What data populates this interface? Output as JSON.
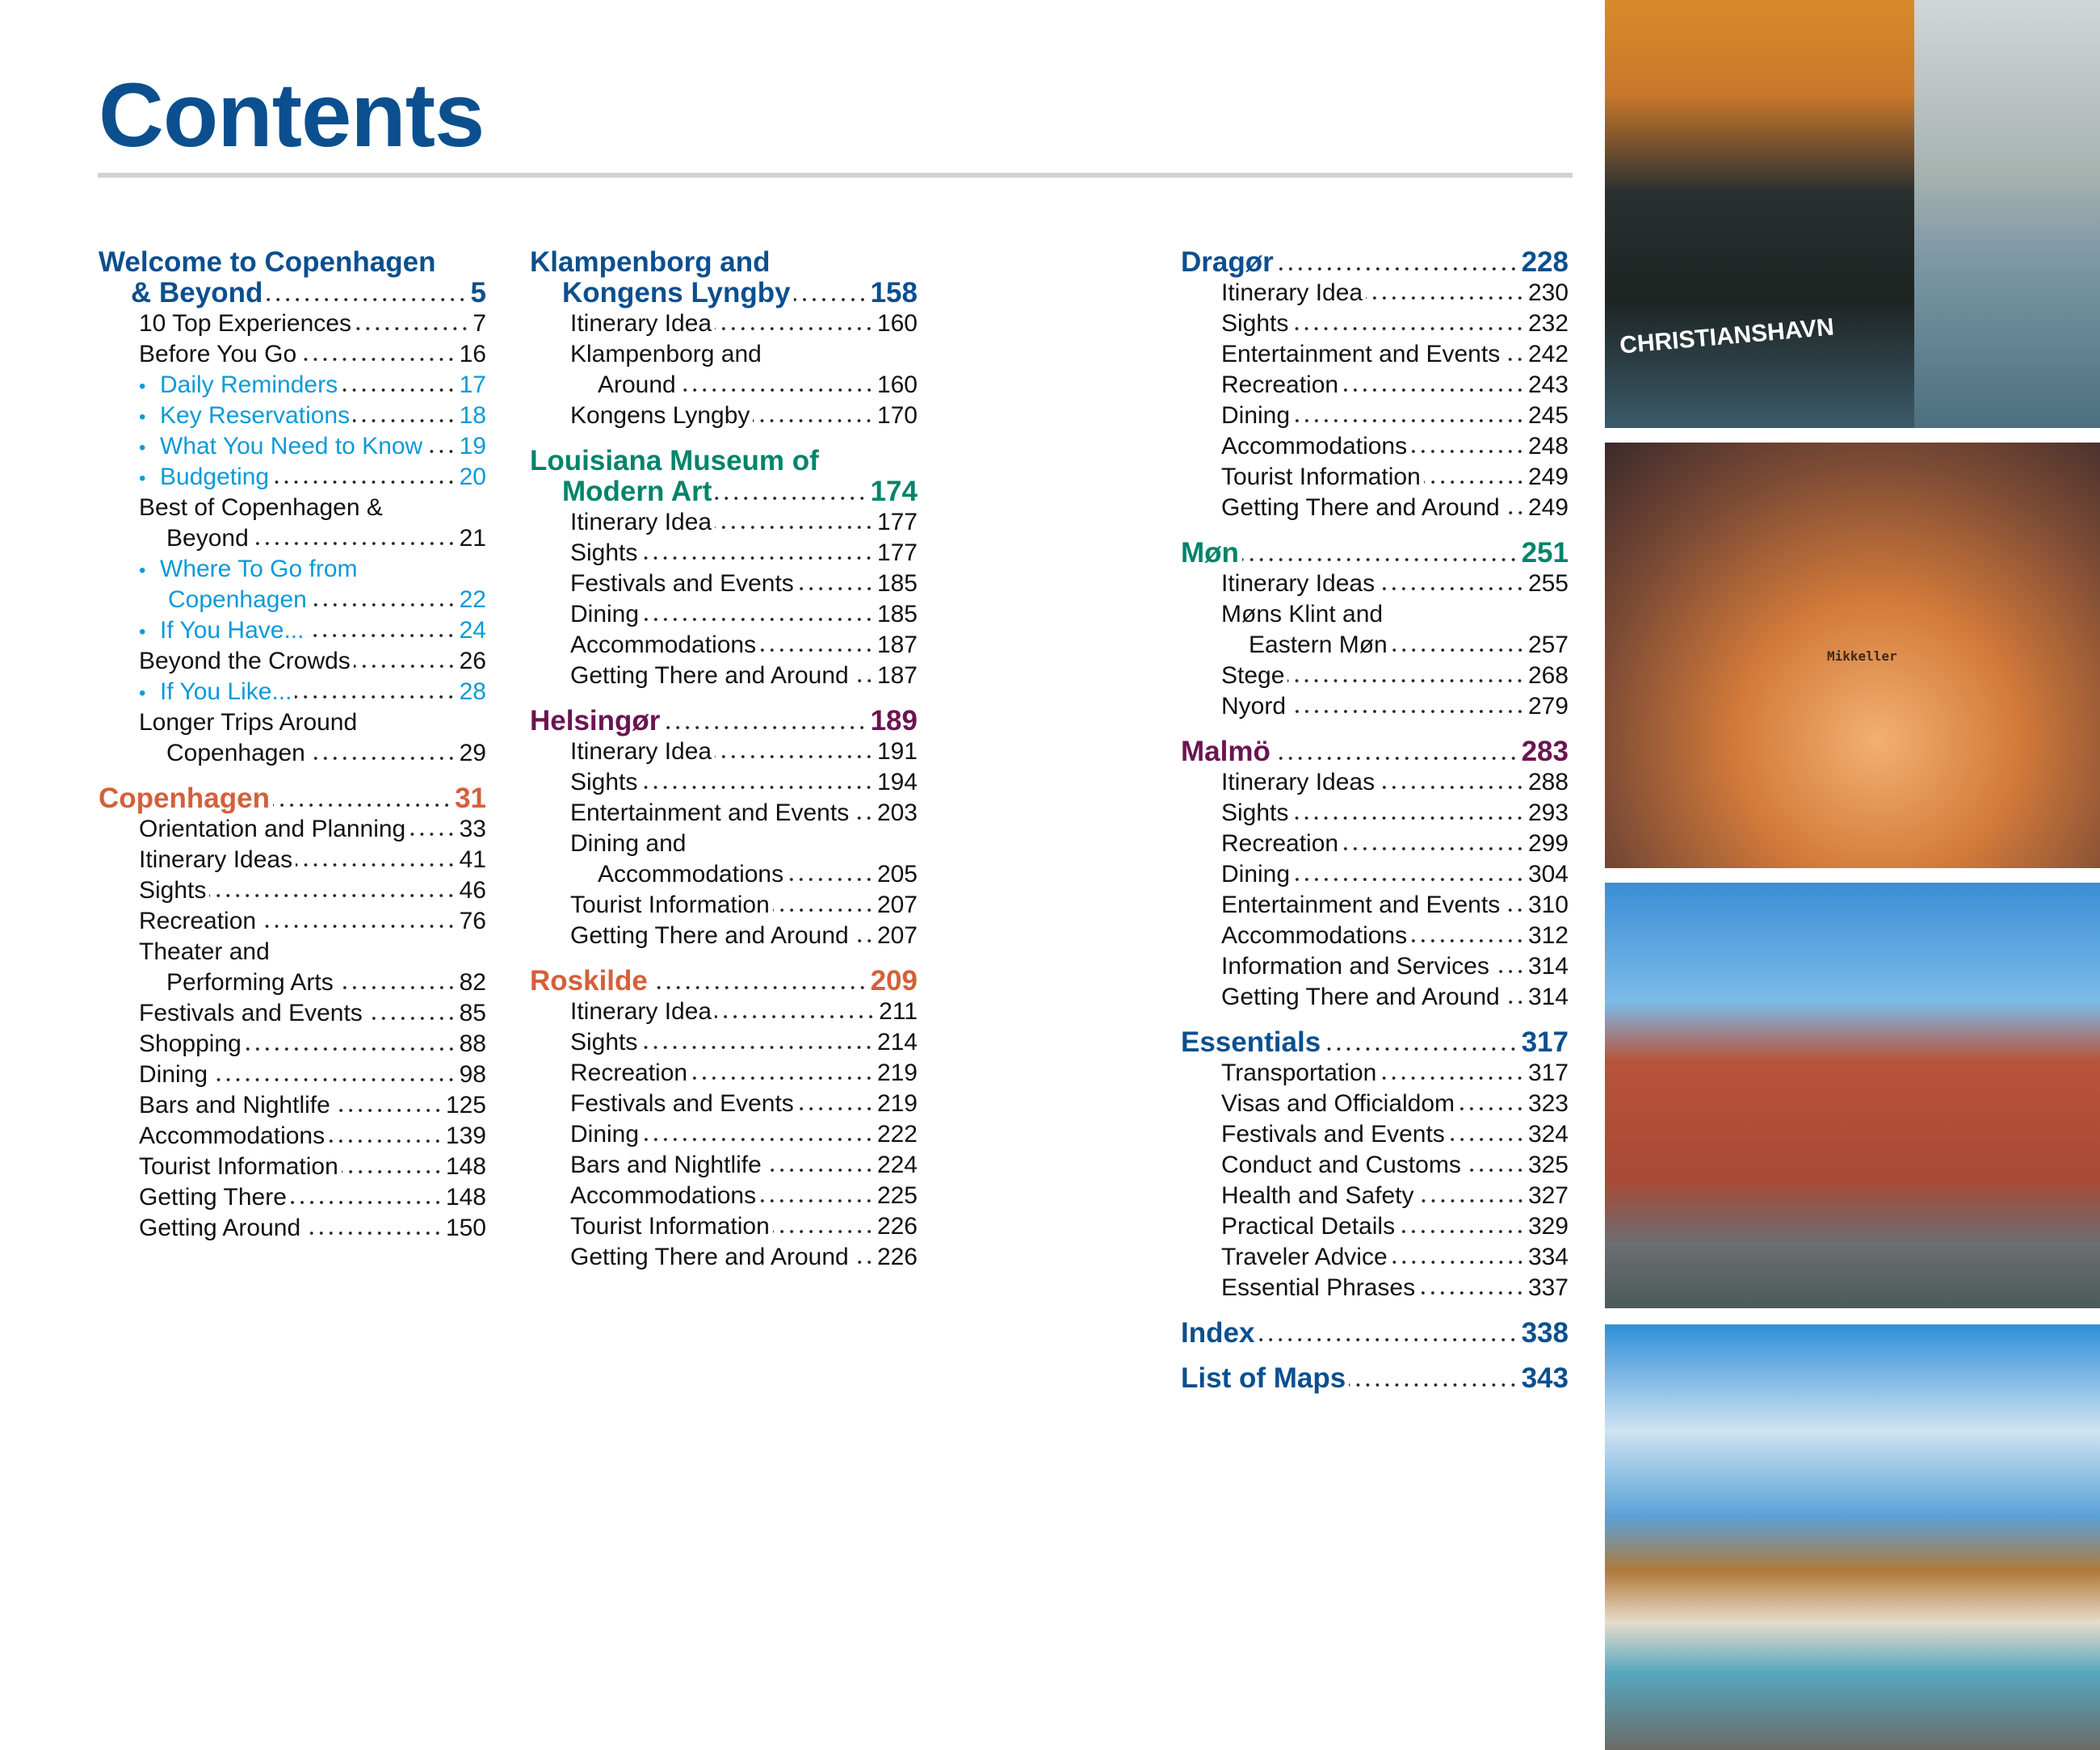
{
  "title": "Contents",
  "colors": {
    "blue": "#0b4f8f",
    "green": "#00846b",
    "purple": "#6b1450",
    "orange": "#d4603a",
    "subitem": "#0a9ad8"
  },
  "columns": [
    {
      "sections": [
        {
          "title": "Welcome to Copenhagen",
          "title_cont": "& Beyond",
          "page": "5",
          "color": "#0b4f8f",
          "items": [
            {
              "label": "10 Top Experiences",
              "page": "7"
            },
            {
              "label": "Before You Go",
              "page": "16"
            },
            {
              "label": "Daily Reminders",
              "page": "17",
              "bullet": true
            },
            {
              "label": "Key Reservations",
              "page": "18",
              "bullet": true
            },
            {
              "label": "What You Need to Know",
              "page": "19",
              "bullet": true
            },
            {
              "label": "Budgeting",
              "page": "20",
              "bullet": true
            },
            {
              "label": "Best of Copenhagen &",
              "cont": "Beyond",
              "page": "21"
            },
            {
              "label": "Where To Go from",
              "cont": "Copenhagen",
              "page": "22",
              "bullet": true
            },
            {
              "label": "If You Have...",
              "page": "24",
              "bullet": true
            },
            {
              "label": "Beyond the Crowds",
              "page": "26"
            },
            {
              "label": "If You Like...",
              "page": "28",
              "bullet": true
            },
            {
              "label": "Longer Trips Around",
              "cont": "Copenhagen",
              "page": "29"
            }
          ]
        },
        {
          "title": "Copenhagen",
          "page": "31",
          "color": "#d4603a",
          "items": [
            {
              "label": "Orientation and Planning",
              "page": "33"
            },
            {
              "label": "Itinerary Ideas",
              "page": "41"
            },
            {
              "label": "Sights",
              "page": "46"
            },
            {
              "label": "Recreation",
              "page": "76"
            },
            {
              "label": "Theater and",
              "cont": "Performing Arts",
              "page": "82"
            },
            {
              "label": "Festivals and Events",
              "page": "85"
            },
            {
              "label": "Shopping",
              "page": "88"
            },
            {
              "label": "Dining",
              "page": "98"
            },
            {
              "label": "Bars and Nightlife",
              "page": "125"
            },
            {
              "label": "Accommodations",
              "page": "139"
            },
            {
              "label": "Tourist Information",
              "page": "148"
            },
            {
              "label": "Getting There",
              "page": "148"
            },
            {
              "label": "Getting Around",
              "page": "150"
            }
          ]
        }
      ]
    },
    {
      "sections": [
        {
          "title": "Klampenborg and",
          "title_cont": "Kongens Lyngby",
          "page": "158",
          "color": "#0b4f8f",
          "items": [
            {
              "label": "Itinerary Idea",
              "page": "160"
            },
            {
              "label": "Klampenborg and",
              "cont": "Around",
              "page": "160"
            },
            {
              "label": "Kongens Lyngby",
              "page": "170"
            }
          ]
        },
        {
          "title": "Louisiana Museum of",
          "title_cont": "Modern Art",
          "page": "174",
          "color": "#00846b",
          "items": [
            {
              "label": "Itinerary Idea",
              "page": "177"
            },
            {
              "label": "Sights",
              "page": "177"
            },
            {
              "label": "Festivals and Events",
              "page": "185"
            },
            {
              "label": "Dining",
              "page": "185"
            },
            {
              "label": "Accommodations",
              "page": "187"
            },
            {
              "label": "Getting There and Around",
              "page": "187"
            }
          ]
        },
        {
          "title": "Helsingør",
          "page": "189",
          "color": "#6b1450",
          "items": [
            {
              "label": "Itinerary Idea",
              "page": "191"
            },
            {
              "label": "Sights",
              "page": "194"
            },
            {
              "label": "Entertainment and Events",
              "page": "203"
            },
            {
              "label": "Dining and",
              "cont": "Accommodations",
              "page": "205"
            },
            {
              "label": "Tourist Information",
              "page": "207"
            },
            {
              "label": "Getting There and Around",
              "page": "207"
            }
          ]
        },
        {
          "title": "Roskilde",
          "page": "209",
          "color": "#d4603a",
          "items": [
            {
              "label": "Itinerary Idea",
              "page": "211"
            },
            {
              "label": "Sights",
              "page": "214"
            },
            {
              "label": "Recreation",
              "page": "219"
            },
            {
              "label": "Festivals and Events",
              "page": "219"
            },
            {
              "label": "Dining",
              "page": "222"
            },
            {
              "label": "Bars and Nightlife",
              "page": "224"
            },
            {
              "label": "Accommodations",
              "page": "225"
            },
            {
              "label": "Tourist Information",
              "page": "226"
            },
            {
              "label": "Getting There and Around",
              "page": "226"
            }
          ]
        }
      ]
    },
    {
      "sections": [
        {
          "title": "Dragør",
          "page": "228",
          "color": "#0b4f8f",
          "items": [
            {
              "label": "Itinerary Idea",
              "page": "230"
            },
            {
              "label": "Sights",
              "page": "232"
            },
            {
              "label": "Entertainment and Events",
              "page": "242"
            },
            {
              "label": "Recreation",
              "page": "243"
            },
            {
              "label": "Dining",
              "page": "245"
            },
            {
              "label": "Accommodations",
              "page": "248"
            },
            {
              "label": "Tourist Information",
              "page": "249"
            },
            {
              "label": "Getting There and Around",
              "page": "249"
            }
          ]
        },
        {
          "title": "Møn",
          "page": "251",
          "color": "#00846b",
          "items": [
            {
              "label": "Itinerary Ideas",
              "page": "255"
            },
            {
              "label": "Møns Klint and",
              "cont": "Eastern Møn",
              "page": "257"
            },
            {
              "label": "Stege",
              "page": "268"
            },
            {
              "label": "Nyord",
              "page": "279"
            }
          ]
        },
        {
          "title": "Malmö",
          "page": "283",
          "color": "#6b1450",
          "items": [
            {
              "label": "Itinerary Ideas",
              "page": "288"
            },
            {
              "label": "Sights",
              "page": "293"
            },
            {
              "label": "Recreation",
              "page": "299"
            },
            {
              "label": "Dining",
              "page": "304"
            },
            {
              "label": "Entertainment and Events",
              "page": "310"
            },
            {
              "label": "Accommodations",
              "page": "312"
            },
            {
              "label": "Information and Services",
              "page": "314"
            },
            {
              "label": "Getting There and Around",
              "page": "314"
            }
          ]
        },
        {
          "title": "Essentials",
          "page": "317",
          "color": "#0b4f8f",
          "items": [
            {
              "label": "Transportation",
              "page": "317"
            },
            {
              "label": "Visas and Officialdom",
              "page": "323"
            },
            {
              "label": "Festivals and Events",
              "page": "324"
            },
            {
              "label": "Conduct and Customs",
              "page": "325"
            },
            {
              "label": "Health and Safety",
              "page": "327"
            },
            {
              "label": "Practical Details",
              "page": "329"
            },
            {
              "label": "Traveler Advice",
              "page": "334"
            },
            {
              "label": "Essential Phrases",
              "page": "337"
            }
          ]
        },
        {
          "title": "Index",
          "page": "338",
          "color": "#0b4f8f",
          "items": []
        },
        {
          "title": "List of Maps",
          "page": "343",
          "color": "#0b4f8f",
          "items": []
        }
      ]
    }
  ],
  "photos": [
    {
      "name": "christianshavn-boat-photo",
      "text": "CHRISTIANSHAVN"
    },
    {
      "name": "mikkeller-beer-glass-photo",
      "text": "Mikkeller"
    },
    {
      "name": "malmo-city-hall-photo"
    },
    {
      "name": "mons-klint-cliffs-photo"
    }
  ]
}
